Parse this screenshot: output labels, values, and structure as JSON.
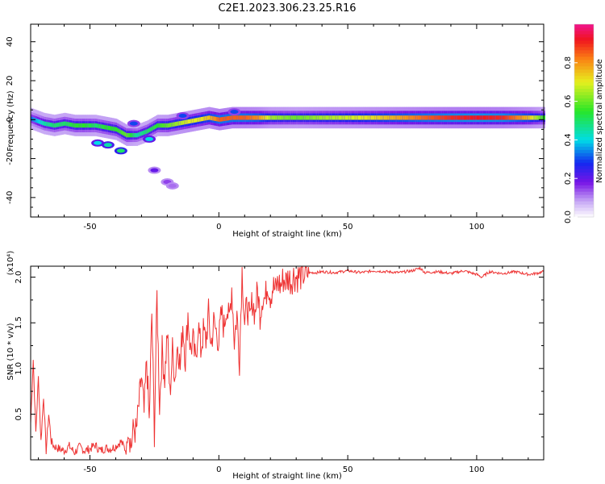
{
  "title": "C2E1.2023.306.23.25.R16",
  "chart_data": [
    {
      "type": "heatmap",
      "xlabel": "Height of straight line (km)",
      "ylabel": "Frequency (Hz)",
      "xlim": [
        -73,
        126
      ],
      "ylim": [
        -50,
        49
      ],
      "x_ticks": [
        -50,
        0,
        50,
        100
      ],
      "y_ticks": [
        -40,
        -20,
        0,
        20,
        40
      ],
      "colorbar": {
        "label": "Normalized spectral amplitude",
        "range": [
          0.0,
          1.0
        ],
        "ticks": [
          "0.0",
          "0.2",
          "0.4",
          "0.6",
          "0.8"
        ]
      },
      "ridge": [
        {
          "x": -72,
          "freq": 0,
          "amp": 0.35
        },
        {
          "x": -68,
          "freq": -2,
          "amp": 0.45
        },
        {
          "x": -64,
          "freq": -3,
          "amp": 0.5
        },
        {
          "x": -60,
          "freq": -2,
          "amp": 0.5
        },
        {
          "x": -56,
          "freq": -3,
          "amp": 0.55
        },
        {
          "x": -52,
          "freq": -3,
          "amp": 0.55
        },
        {
          "x": -48,
          "freq": -3,
          "amp": 0.5
        },
        {
          "x": -44,
          "freq": -4,
          "amp": 0.55
        },
        {
          "x": -40,
          "freq": -5,
          "amp": 0.55
        },
        {
          "x": -36,
          "freq": -8,
          "amp": 0.6
        },
        {
          "x": -32,
          "freq": -8,
          "amp": 0.45
        },
        {
          "x": -28,
          "freq": -6,
          "amp": 0.5
        },
        {
          "x": -24,
          "freq": -3,
          "amp": 0.55
        },
        {
          "x": -20,
          "freq": -3,
          "amp": 0.6
        },
        {
          "x": -16,
          "freq": -2,
          "amp": 0.65
        },
        {
          "x": -12,
          "freq": -1,
          "amp": 0.7
        },
        {
          "x": -8,
          "freq": 0,
          "amp": 0.7
        },
        {
          "x": -4,
          "freq": 1,
          "amp": 0.75
        },
        {
          "x": 0,
          "freq": 0,
          "amp": 0.85
        },
        {
          "x": 5,
          "freq": 1,
          "amp": 0.85
        },
        {
          "x": 10,
          "freq": 1,
          "amp": 0.85
        },
        {
          "x": 15,
          "freq": 1,
          "amp": 0.8
        },
        {
          "x": 20,
          "freq": 1,
          "amp": 0.65
        },
        {
          "x": 30,
          "freq": 1,
          "amp": 0.6
        },
        {
          "x": 40,
          "freq": 1,
          "amp": 0.65
        },
        {
          "x": 50,
          "freq": 1,
          "amp": 0.68
        },
        {
          "x": 60,
          "freq": 1,
          "amp": 0.72
        },
        {
          "x": 70,
          "freq": 1,
          "amp": 0.78
        },
        {
          "x": 80,
          "freq": 1,
          "amp": 0.85
        },
        {
          "x": 90,
          "freq": 1,
          "amp": 0.9
        },
        {
          "x": 100,
          "freq": 1,
          "amp": 0.92
        },
        {
          "x": 110,
          "freq": 1,
          "amp": 0.9
        },
        {
          "x": 120,
          "freq": 1,
          "amp": 0.75
        },
        {
          "x": 126,
          "freq": 1,
          "amp": 0.55
        }
      ],
      "side_features": [
        {
          "x": -47,
          "freq": -12,
          "amp": 0.4
        },
        {
          "x": -43,
          "freq": -13,
          "amp": 0.45
        },
        {
          "x": -38,
          "freq": -16,
          "amp": 0.5
        },
        {
          "x": -27,
          "freq": -10,
          "amp": 0.4
        },
        {
          "x": -33,
          "freq": -2,
          "amp": 0.3
        },
        {
          "x": -25,
          "freq": -26,
          "amp": 0.2
        },
        {
          "x": -20,
          "freq": -32,
          "amp": 0.15
        },
        {
          "x": -18,
          "freq": -34,
          "amp": 0.12
        },
        {
          "x": -14,
          "freq": 2,
          "amp": 0.3
        },
        {
          "x": 6,
          "freq": 4,
          "amp": 0.3
        }
      ]
    },
    {
      "type": "line",
      "xlabel": "Height of straight line (km)",
      "ylabel": "SNR (10 * v/v)",
      "y_multiplier": "(x10⁴)",
      "xlim": [
        -73,
        126
      ],
      "ylim": [
        0,
        2.12
      ],
      "x_ticks": [
        -50,
        0,
        50,
        100
      ],
      "y_ticks": [
        0.5,
        1.0,
        1.5,
        2.0
      ],
      "color": "#ee3333",
      "series": [
        {
          "x": [
            -73,
            -72,
            -71,
            -70,
            -69,
            -68,
            -67,
            -66,
            -65,
            -64,
            -62,
            -60,
            -58,
            -56,
            -54,
            -52,
            -50,
            -48,
            -46,
            -44,
            -42,
            -40,
            -38,
            -36,
            -35,
            -34,
            -33,
            -32,
            -31,
            -30,
            -29,
            -28,
            -27,
            -26,
            -25,
            -24,
            -23,
            -22,
            -21,
            -20,
            -19,
            -18,
            -17,
            -16,
            -15,
            -14,
            -13,
            -12,
            -11,
            -10,
            -9,
            -8,
            -7,
            -6,
            -5,
            -4,
            -3,
            -2,
            -1,
            0,
            1,
            2,
            3,
            4,
            5,
            6,
            7,
            8,
            9,
            10,
            11,
            12,
            13,
            14,
            15,
            16,
            17,
            18,
            19,
            20,
            21,
            22,
            23,
            24,
            25,
            26,
            27,
            28,
            29,
            30,
            32,
            34,
            36,
            38,
            40,
            45,
            50,
            55,
            60,
            65,
            70,
            75,
            78,
            80,
            85,
            90,
            95,
            100,
            102,
            105,
            110,
            115,
            120,
            123,
            126
          ],
          "y": [
            0.4,
            1.1,
            0.3,
            0.9,
            0.2,
            0.7,
            0.1,
            0.5,
            0.2,
            0.15,
            0.12,
            0.1,
            0.15,
            0.08,
            0.14,
            0.1,
            0.12,
            0.16,
            0.1,
            0.13,
            0.12,
            0.15,
            0.2,
            0.1,
            0.35,
            0.15,
            0.35,
            0.3,
            0.6,
            0.9,
            0.5,
            1.1,
            0.4,
            1.6,
            0.3,
            1.8,
            0.6,
            1.2,
            0.9,
            1.4,
            0.7,
            1.2,
            0.9,
            1.3,
            1.0,
            1.5,
            1.1,
            1.6,
            1.2,
            1.3,
            1.05,
            1.5,
            1.2,
            1.4,
            1.3,
            1.6,
            1.25,
            1.5,
            1.4,
            1.3,
            1.6,
            1.45,
            1.7,
            1.5,
            1.9,
            1.3,
            1.6,
            1.1,
            2.1,
            1.5,
            1.7,
            1.5,
            1.75,
            1.6,
            1.85,
            1.6,
            1.8,
            1.75,
            1.95,
            1.8,
            1.9,
            1.85,
            1.95,
            1.9,
            1.98,
            1.95,
            2.0,
            1.96,
            2.02,
            2.0,
            2.02,
            2.04,
            2.05,
            2.05,
            2.06,
            2.05,
            2.07,
            2.05,
            2.07,
            2.06,
            2.05,
            2.07,
            2.1,
            2.05,
            2.06,
            2.04,
            2.07,
            2.03,
            2.0,
            2.06,
            2.04,
            2.06,
            2.03,
            2.04,
            2.06
          ]
        }
      ]
    }
  ]
}
